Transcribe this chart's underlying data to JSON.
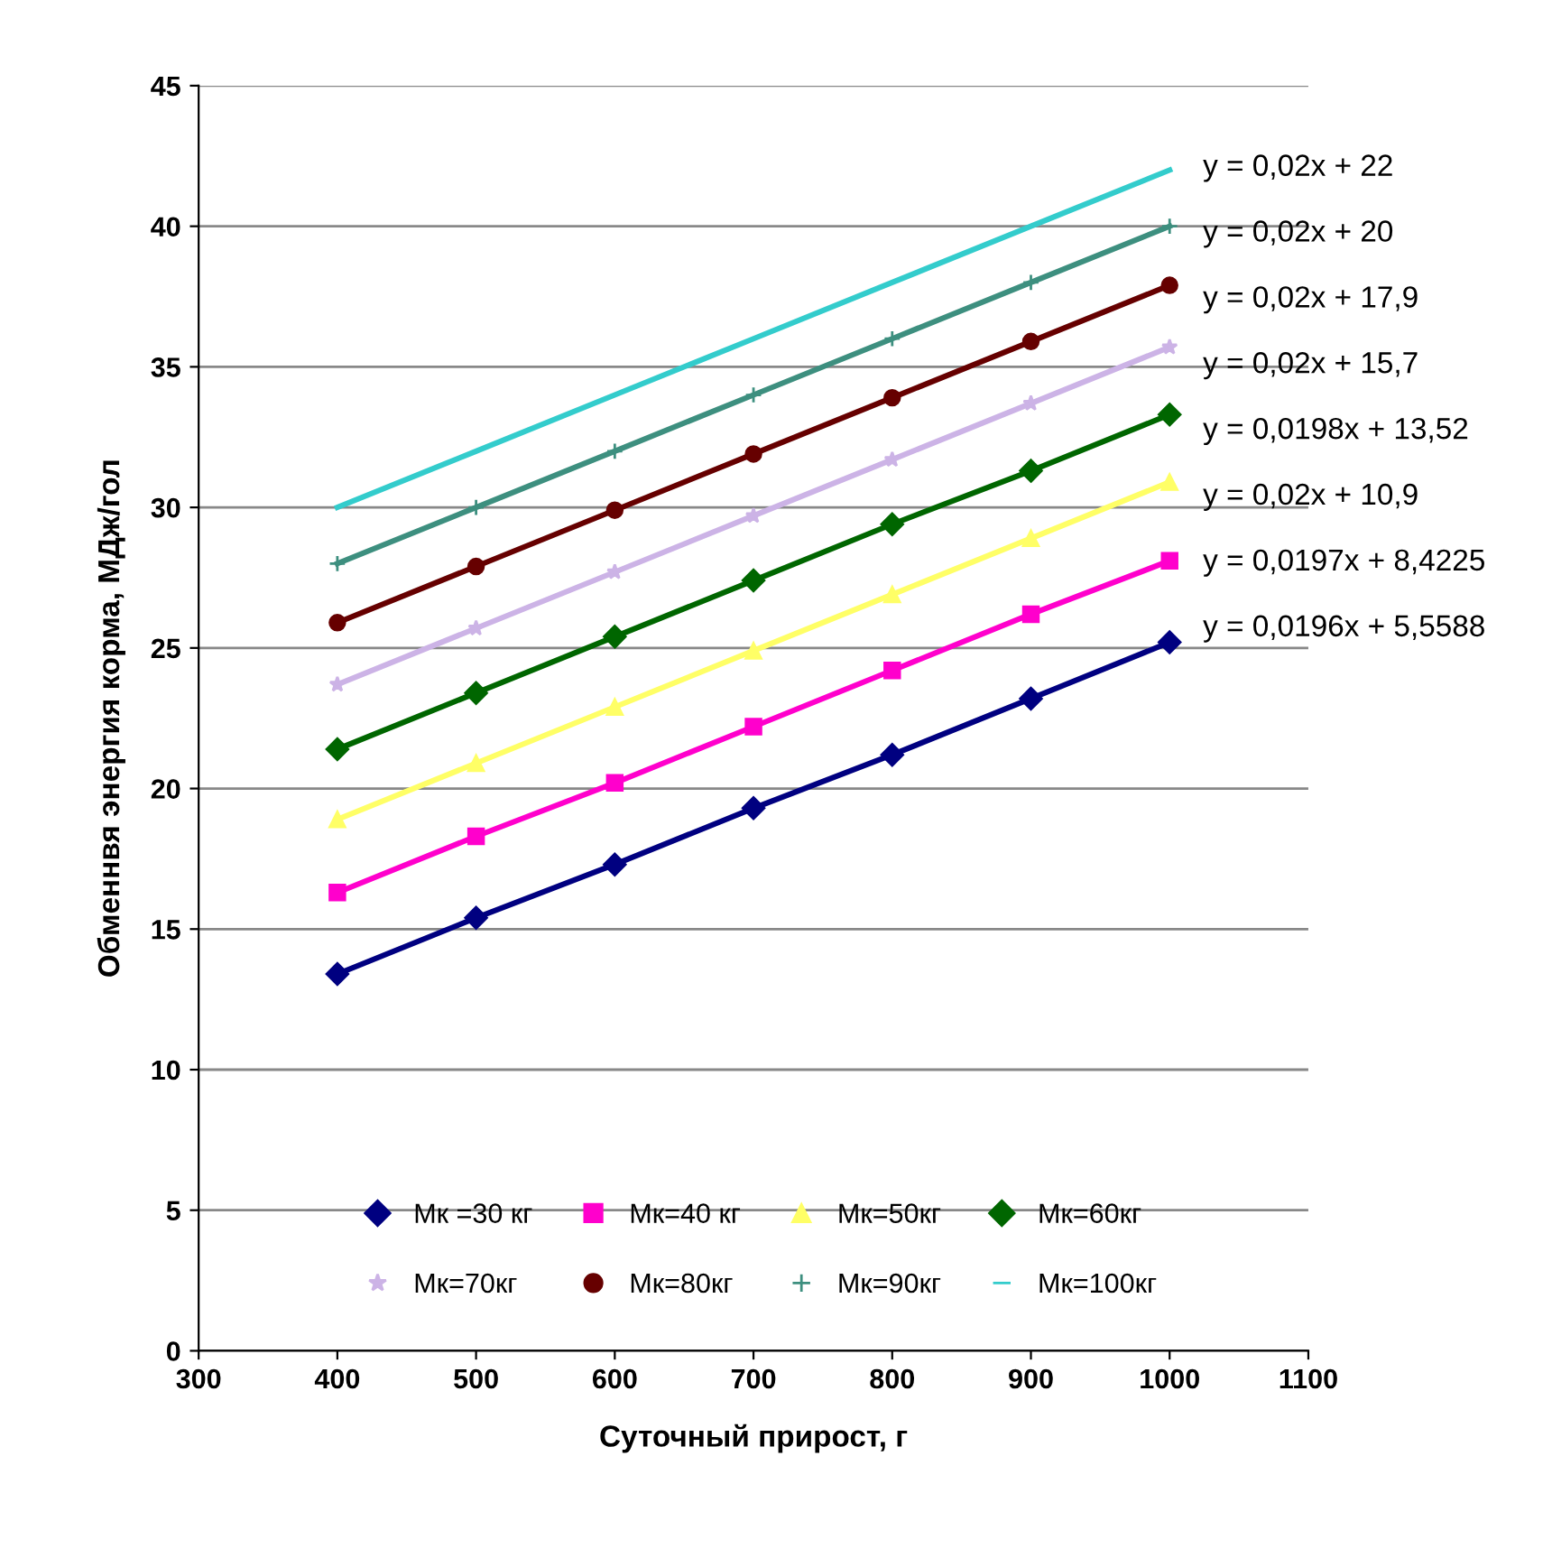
{
  "chart_data": {
    "type": "line",
    "xlabel": "Суточный прирост, г",
    "ylabel": "Обменнвя энергия корма, МДж/гол",
    "x": [
      400,
      500,
      600,
      700,
      800,
      900,
      1000
    ],
    "series": [
      {
        "name": "Мк =30 кг",
        "color": "#000080",
        "marker": "diamond",
        "values": [
          13.4,
          15.4,
          17.3,
          19.3,
          21.2,
          23.2,
          25.2
        ]
      },
      {
        "name": "Мк=40 кг",
        "color": "#ff00cc",
        "marker": "square",
        "values": [
          16.3,
          18.3,
          20.2,
          22.2,
          24.2,
          26.2,
          28.1
        ]
      },
      {
        "name": "Мк=50кг",
        "color": "#ffff66",
        "marker": "triangle",
        "values": [
          18.9,
          20.9,
          22.9,
          24.9,
          26.9,
          28.9,
          30.9
        ]
      },
      {
        "name": "Мк=60кг",
        "color": "#006600",
        "marker": "diamond",
        "values": [
          21.4,
          23.4,
          25.4,
          27.4,
          29.4,
          31.3,
          33.3
        ]
      },
      {
        "name": "Мк=70кг",
        "color": "#ccb3e6",
        "marker": "star",
        "values": [
          23.7,
          25.7,
          27.7,
          29.7,
          31.7,
          33.7,
          35.7
        ]
      },
      {
        "name": "Мк=80кг",
        "color": "#660000",
        "marker": "circle",
        "values": [
          25.9,
          27.9,
          29.9,
          31.9,
          33.9,
          35.9,
          37.9
        ]
      },
      {
        "name": "Мк=90кг",
        "color": "#3d8f7f",
        "marker": "cross",
        "values": [
          28,
          30,
          32,
          34,
          36,
          38,
          40
        ]
      },
      {
        "name": "Мк=100кг",
        "color": "#33cccc",
        "marker": "none",
        "values": [
          30,
          32,
          34,
          36,
          38,
          40,
          42
        ]
      }
    ],
    "annotations": [
      "y = 0,02x + 22",
      "y = 0,02x + 20",
      "y = 0,02x + 17,9",
      "y = 0,02x + 15,7",
      "y = 0,0198x + 13,52",
      "y = 0,02x + 10,9",
      "y = 0,0197x + 8,4225",
      "y = 0,0196x + 5,5588"
    ],
    "xlim": [
      300,
      1100
    ],
    "xticks": [
      300,
      400,
      500,
      600,
      700,
      800,
      900,
      1000,
      1100
    ],
    "ylim": [
      0,
      45
    ],
    "yticks": [
      0,
      5,
      10,
      15,
      20,
      25,
      30,
      35,
      40,
      45
    ],
    "grid": "y",
    "legend": "bottom",
    "line_style": "solid"
  }
}
